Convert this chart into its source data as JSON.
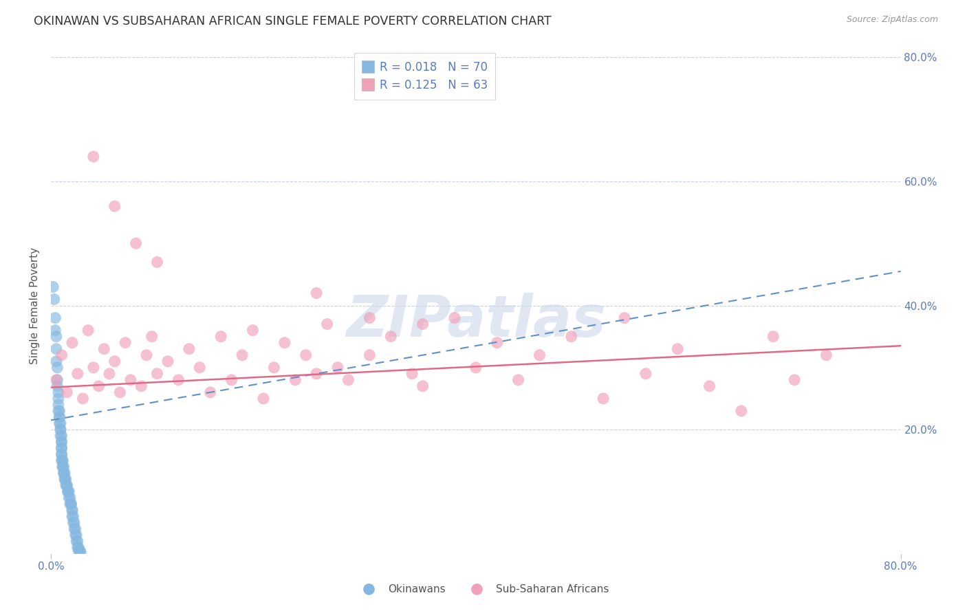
{
  "title": "OKINAWAN VS SUBSAHARAN AFRICAN SINGLE FEMALE POVERTY CORRELATION CHART",
  "source": "Source: ZipAtlas.com",
  "ylabel": "Single Female Poverty",
  "xlim": [
    0,
    0.8
  ],
  "ylim": [
    0,
    0.8
  ],
  "yticks": [
    0.0,
    0.2,
    0.4,
    0.6,
    0.8
  ],
  "ytick_labels": [
    "",
    "20.0%",
    "40.0%",
    "60.0%",
    "80.0%"
  ],
  "grid_color": "#c8d0e8",
  "background_color": "#ffffff",
  "legend_R1": "R = 0.018",
  "legend_N1": "N = 70",
  "legend_R2": "R = 0.125",
  "legend_N2": "N = 63",
  "legend_label1": "Okinawans",
  "legend_label2": "Sub-Saharan Africans",
  "blue_color": "#85b8e0",
  "blue_line_color": "#6090c8",
  "pink_color": "#f0a0b8",
  "pink_line_color": "#e06888",
  "watermark": "ZIPatlas",
  "watermark_color": "#ccd8ec",
  "title_color": "#333333",
  "axis_color": "#5a7abf",
  "blue_trend_start": 0.215,
  "blue_trend_end": 0.455,
  "pink_trend_start": 0.268,
  "pink_trend_end": 0.335,
  "okinawan_x": [
    0.002,
    0.003,
    0.004,
    0.004,
    0.005,
    0.005,
    0.005,
    0.006,
    0.006,
    0.006,
    0.007,
    0.007,
    0.007,
    0.007,
    0.008,
    0.008,
    0.008,
    0.008,
    0.009,
    0.009,
    0.009,
    0.009,
    0.01,
    0.01,
    0.01,
    0.01,
    0.01,
    0.01,
    0.01,
    0.01,
    0.011,
    0.011,
    0.011,
    0.011,
    0.012,
    0.012,
    0.012,
    0.013,
    0.013,
    0.013,
    0.014,
    0.014,
    0.015,
    0.015,
    0.016,
    0.016,
    0.017,
    0.017,
    0.018,
    0.018,
    0.019,
    0.019,
    0.02,
    0.02,
    0.02,
    0.021,
    0.021,
    0.022,
    0.022,
    0.023,
    0.023,
    0.024,
    0.024,
    0.025,
    0.025,
    0.026,
    0.026,
    0.027,
    0.027,
    0.028
  ],
  "okinawan_y": [
    0.43,
    0.41,
    0.38,
    0.36,
    0.35,
    0.33,
    0.31,
    0.3,
    0.28,
    0.27,
    0.26,
    0.25,
    0.24,
    0.23,
    0.23,
    0.22,
    0.22,
    0.21,
    0.21,
    0.2,
    0.2,
    0.19,
    0.19,
    0.18,
    0.18,
    0.17,
    0.17,
    0.16,
    0.16,
    0.15,
    0.15,
    0.15,
    0.14,
    0.14,
    0.14,
    0.13,
    0.13,
    0.13,
    0.12,
    0.12,
    0.12,
    0.11,
    0.11,
    0.11,
    0.1,
    0.1,
    0.1,
    0.09,
    0.09,
    0.08,
    0.08,
    0.08,
    0.07,
    0.07,
    0.06,
    0.06,
    0.05,
    0.05,
    0.04,
    0.04,
    0.03,
    0.03,
    0.02,
    0.02,
    0.01,
    0.01,
    0.005,
    0.005,
    0.003,
    0.002
  ],
  "subsaharan_x": [
    0.005,
    0.01,
    0.015,
    0.02,
    0.025,
    0.03,
    0.035,
    0.04,
    0.045,
    0.05,
    0.055,
    0.06,
    0.065,
    0.07,
    0.075,
    0.085,
    0.09,
    0.095,
    0.1,
    0.11,
    0.12,
    0.13,
    0.14,
    0.15,
    0.16,
    0.17,
    0.18,
    0.19,
    0.2,
    0.21,
    0.22,
    0.23,
    0.24,
    0.25,
    0.26,
    0.27,
    0.28,
    0.3,
    0.32,
    0.34,
    0.35,
    0.38,
    0.4,
    0.42,
    0.44,
    0.46,
    0.49,
    0.52,
    0.54,
    0.56,
    0.59,
    0.62,
    0.65,
    0.68,
    0.7,
    0.73,
    0.04,
    0.06,
    0.08,
    0.1,
    0.25,
    0.3,
    0.35
  ],
  "subsaharan_y": [
    0.28,
    0.32,
    0.26,
    0.34,
    0.29,
    0.25,
    0.36,
    0.3,
    0.27,
    0.33,
    0.29,
    0.31,
    0.26,
    0.34,
    0.28,
    0.27,
    0.32,
    0.35,
    0.29,
    0.31,
    0.28,
    0.33,
    0.3,
    0.26,
    0.35,
    0.28,
    0.32,
    0.36,
    0.25,
    0.3,
    0.34,
    0.28,
    0.32,
    0.29,
    0.37,
    0.3,
    0.28,
    0.32,
    0.35,
    0.29,
    0.27,
    0.38,
    0.3,
    0.34,
    0.28,
    0.32,
    0.35,
    0.25,
    0.38,
    0.29,
    0.33,
    0.27,
    0.23,
    0.35,
    0.28,
    0.32,
    0.64,
    0.56,
    0.5,
    0.47,
    0.42,
    0.38,
    0.37
  ]
}
